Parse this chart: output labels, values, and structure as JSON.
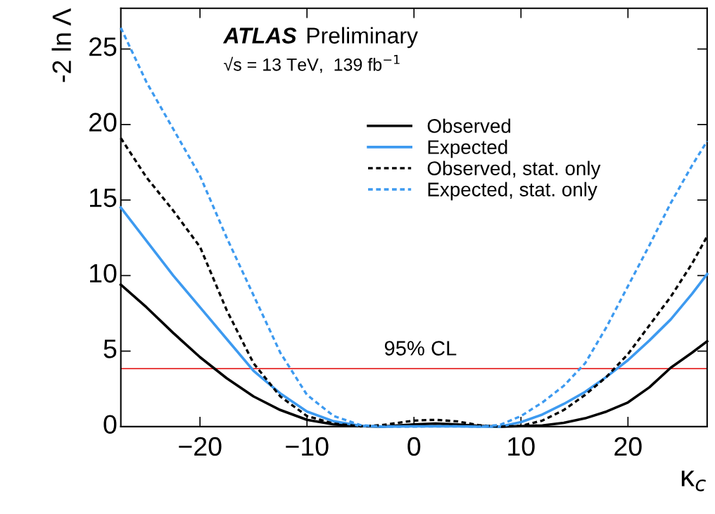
{
  "chart_data": {
    "type": "line",
    "xlabel": "κ$_{c}$",
    "ylabel": "-2 ln Λ",
    "annotations": [
      "ATLAS",
      "Preliminary",
      "√s = 13 TeV,  139 fb$^{−1}$"
    ],
    "x": [
      -27.4,
      -25,
      -22.5,
      -20,
      -17.5,
      -15,
      -12.5,
      -10,
      -7.5,
      -5,
      -3,
      0,
      2,
      4,
      6,
      8,
      10,
      12,
      14,
      16,
      18,
      20,
      22,
      24,
      26,
      27.4
    ],
    "series": [
      {
        "name": "Observed",
        "color": "#000000",
        "line_style": "solid",
        "values": [
          9.4,
          7.9,
          6.2,
          4.6,
          3.2,
          2.0,
          1.1,
          0.45,
          0.15,
          0.03,
          0.0,
          0.15,
          0.2,
          0.15,
          0.05,
          0.0,
          0.03,
          0.08,
          0.25,
          0.55,
          1.0,
          1.6,
          2.6,
          3.9,
          4.9,
          5.65
        ]
      },
      {
        "name": "Expected",
        "color": "#3d9af0",
        "line_style": "solid",
        "values": [
          14.5,
          12.3,
          10.0,
          7.9,
          5.8,
          3.7,
          2.2,
          1.0,
          0.35,
          0.05,
          0.0,
          0.02,
          0.02,
          0.02,
          0.0,
          0.0,
          0.3,
          0.8,
          1.5,
          2.3,
          3.3,
          4.4,
          5.7,
          7.1,
          8.8,
          10.1
        ]
      },
      {
        "name": "Observed, stat. only",
        "color": "#000000",
        "line_style": "dashed",
        "values": [
          19.1,
          16.5,
          14.3,
          11.9,
          7.7,
          4.2,
          2.0,
          0.7,
          0.2,
          0.02,
          0.1,
          0.4,
          0.45,
          0.35,
          0.1,
          0.0,
          0.05,
          0.4,
          1.1,
          2.1,
          3.3,
          4.8,
          6.7,
          8.6,
          10.8,
          12.6
        ]
      },
      {
        "name": "Expected, stat. only",
        "color": "#3d9af0",
        "line_style": "dashed",
        "values": [
          26.4,
          22.8,
          19.7,
          16.6,
          12.5,
          8.7,
          4.9,
          2.1,
          0.7,
          0.1,
          0.0,
          0.0,
          0.02,
          0.02,
          0.0,
          0.1,
          0.7,
          1.6,
          2.7,
          4.2,
          6.6,
          9.3,
          12.0,
          14.8,
          17.3,
          18.9
        ]
      }
    ],
    "xlim": [
      -27.4,
      27.4
    ],
    "ylim": [
      0,
      27.7
    ],
    "xticks": [
      {
        "value": -20,
        "label": "−20"
      },
      {
        "value": -10,
        "label": "−10"
      },
      0,
      10,
      20
    ],
    "yticks": [
      0,
      5,
      10,
      15,
      20,
      25
    ],
    "ref_lines": [
      {
        "axis": "y",
        "value": 3.84,
        "label": "95% CL",
        "color": "#e00000"
      }
    ],
    "legend": "top",
    "grid": false,
    "marker": "none"
  }
}
